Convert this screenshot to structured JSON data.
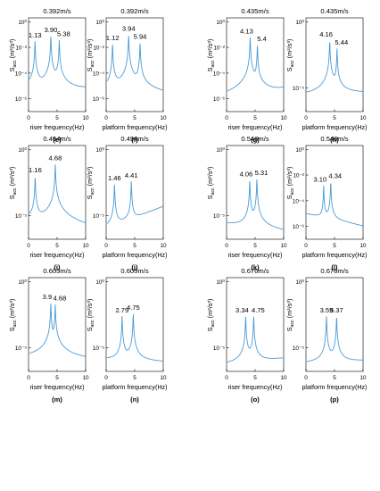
{
  "ylabel_main": "S",
  "ylabel_sub": "acc",
  "ylabel_unit": "(m²/s³)",
  "xlabel_riser": "riser frequency(Hz)",
  "xlabel_platform": "platform frequency(Hz)",
  "line_color": "#4a9bd6",
  "chart_data": [
    {
      "id": "e",
      "type": "line",
      "title": "0.392m/s",
      "xlabel": "riser frequency(Hz)",
      "caption": "(e)",
      "xlim": [
        0,
        10
      ],
      "xticks": [
        "0",
        "5",
        "10"
      ],
      "yscale": "log",
      "ylim_exp": [
        -7,
        0.3
      ],
      "yticks": [
        {
          "exp": 0,
          "label": "10⁰"
        },
        {
          "exp": -2,
          "label": "10⁻²"
        },
        {
          "exp": -4,
          "label": "10⁻⁴"
        },
        {
          "exp": -6,
          "label": "10⁻⁶"
        }
      ],
      "baseline_exp": -6.2,
      "end_exp": -5.3,
      "peaks": [
        {
          "f": 1.13,
          "exp": -1.5,
          "label": "1.13"
        },
        {
          "f": 3.9,
          "exp": -1.1,
          "label": "3.90"
        },
        {
          "f": 5.38,
          "exp": -1.4,
          "label": "5.38"
        }
      ]
    },
    {
      "id": "f",
      "type": "line",
      "title": "0.392m/s",
      "xlabel": "platform frequency(Hz)",
      "caption": "(f)",
      "xlim": [
        0,
        10
      ],
      "xticks": [
        "0",
        "5",
        "10"
      ],
      "yscale": "log",
      "ylim_exp": [
        -7,
        0.3
      ],
      "yticks": [
        {
          "exp": 0,
          "label": "10⁰"
        },
        {
          "exp": -2,
          "label": "10⁻²"
        },
        {
          "exp": -4,
          "label": "10⁻⁴"
        },
        {
          "exp": -6,
          "label": "10⁻⁶"
        }
      ],
      "baseline_exp": -6.3,
      "end_exp": -6.0,
      "peaks": [
        {
          "f": 1.12,
          "exp": -1.7,
          "label": "1.12"
        },
        {
          "f": 3.94,
          "exp": -1.0,
          "label": "3.94"
        },
        {
          "f": 5.94,
          "exp": -1.6,
          "label": "5.94"
        }
      ]
    },
    {
      "id": "g",
      "type": "line",
      "title": "0.435m/s",
      "xlabel": "riser frequency(Hz)",
      "caption": "(g)",
      "xlim": [
        0,
        10
      ],
      "xticks": [
        "0",
        "5",
        "10"
      ],
      "yscale": "log",
      "ylim_exp": [
        -7,
        0.3
      ],
      "yticks": [
        {
          "exp": 0,
          "label": "10⁰"
        },
        {
          "exp": -2,
          "label": "10⁻²"
        },
        {
          "exp": -4,
          "label": "10⁻⁴"
        },
        {
          "exp": -6,
          "label": "10⁻⁶"
        }
      ],
      "baseline_exp": -6.6,
      "end_exp": -5.2,
      "peaks": [
        {
          "f": 4.13,
          "exp": -1.2,
          "label": "4.13"
        },
        {
          "f": 5.4,
          "exp": -1.8,
          "label": "5.4"
        }
      ]
    },
    {
      "id": "h",
      "type": "line",
      "title": "0.435m/s",
      "xlabel": "platform frequency(Hz)",
      "caption": "(h)",
      "xlim": [
        0,
        10
      ],
      "xticks": [
        "0",
        "5",
        "10"
      ],
      "yscale": "log",
      "ylim_exp": [
        -6.8,
        0.3
      ],
      "yticks": [
        {
          "exp": 0,
          "label": "10⁰"
        },
        {
          "exp": -5,
          "label": "10⁻⁵"
        }
      ],
      "baseline_exp": -5.6,
      "end_exp": -5.4,
      "peaks": [
        {
          "f": 4.16,
          "exp": -1.4,
          "label": "4.16"
        },
        {
          "f": 5.44,
          "exp": -2.0,
          "label": "5.44"
        }
      ]
    },
    {
      "id": "i",
      "type": "line",
      "title": "0.494m/s",
      "xlabel": "riser frequency(Hz)",
      "caption": "(i)",
      "xlim": [
        0,
        10
      ],
      "xticks": [
        "0",
        "5",
        "10"
      ],
      "yscale": "log",
      "ylim_exp": [
        -6.8,
        0.3
      ],
      "yticks": [
        {
          "exp": 0,
          "label": "10⁰"
        },
        {
          "exp": -5,
          "label": "10⁻⁵"
        }
      ],
      "baseline_exp": -5.5,
      "end_exp": -6.4,
      "peaks": [
        {
          "f": 1.16,
          "exp": -2.0,
          "label": "1.16"
        },
        {
          "f": 4.68,
          "exp": -1.1,
          "label": "4.68"
        }
      ]
    },
    {
      "id": "j",
      "type": "line",
      "title": "0.494m/s",
      "xlabel": "platform frequency(Hz)",
      "caption": "(j)",
      "xlim": [
        0,
        10
      ],
      "xticks": [
        "0",
        "5",
        "10"
      ],
      "yscale": "log",
      "ylim_exp": [
        -6.8,
        0.3
      ],
      "yticks": [
        {
          "exp": 0,
          "label": "10⁰"
        },
        {
          "exp": -5,
          "label": "10⁻⁵"
        }
      ],
      "baseline_exp": -6.0,
      "end_exp": -4.3,
      "peaks": [
        {
          "f": 1.46,
          "exp": -2.6,
          "label": "1.46"
        },
        {
          "f": 4.41,
          "exp": -2.4,
          "label": "4.41"
        }
      ]
    },
    {
      "id": "k",
      "type": "line",
      "title": "0.546m/s",
      "xlabel": "riser frequency(Hz)",
      "caption": "(k)",
      "xlim": [
        0,
        10
      ],
      "xticks": [
        "0",
        "5",
        "10"
      ],
      "yscale": "log",
      "ylim_exp": [
        -6.8,
        0.3
      ],
      "yticks": [
        {
          "exp": 0,
          "label": "10⁰"
        },
        {
          "exp": -5,
          "label": "10⁻⁵"
        }
      ],
      "baseline_exp": -5.6,
      "end_exp": -6.3,
      "peaks": [
        {
          "f": 4.06,
          "exp": -2.3,
          "label": "4.06"
        },
        {
          "f": 5.31,
          "exp": -2.2,
          "label": "5.31"
        }
      ]
    },
    {
      "id": "l",
      "type": "line",
      "title": "0.546m/s",
      "xlabel": "platform frequency(Hz)",
      "caption": "(l)",
      "xlim": [
        0,
        10
      ],
      "xticks": [
        "0",
        "5",
        "10"
      ],
      "yscale": "log",
      "ylim_exp": [
        -7,
        0.3
      ],
      "yticks": [
        {
          "exp": 0,
          "label": "10⁰"
        },
        {
          "exp": -2,
          "label": "10⁻²"
        },
        {
          "exp": -4,
          "label": "10⁻⁴"
        },
        {
          "exp": -6,
          "label": "10⁻⁶"
        }
      ],
      "baseline_exp": -5.0,
      "end_exp": -6.0,
      "peaks": [
        {
          "f": 3.1,
          "exp": -2.8,
          "label": "3.10"
        },
        {
          "f": 4.34,
          "exp": -2.5,
          "label": "4.34"
        }
      ]
    },
    {
      "id": "m",
      "type": "line",
      "title": "0.605m/s",
      "xlabel": "riser frequency(Hz)",
      "caption": "(m)",
      "xlim": [
        0,
        10
      ],
      "xticks": [
        "0",
        "5",
        "10"
      ],
      "yscale": "log",
      "ylim_exp": [
        -6.8,
        0.3
      ],
      "yticks": [
        {
          "exp": 0,
          "label": "10⁰"
        },
        {
          "exp": -5,
          "label": "10⁻⁵"
        }
      ],
      "baseline_exp": -5.8,
      "end_exp": -6.0,
      "peaks": [
        {
          "f": 3.9,
          "exp": -1.6,
          "label": "3.9"
        },
        {
          "f": 4.68,
          "exp": -1.7,
          "label": "4.68"
        }
      ]
    },
    {
      "id": "n",
      "type": "line",
      "title": "0.605m/s",
      "xlabel": "platform frequency(Hz)",
      "caption": "(n)",
      "xlim": [
        0,
        10
      ],
      "xticks": [
        "0",
        "5",
        "10"
      ],
      "yscale": "log",
      "ylim_exp": [
        -6.8,
        0.3
      ],
      "yticks": [
        {
          "exp": 0,
          "label": "10⁰"
        },
        {
          "exp": -5,
          "label": "10⁻⁵"
        }
      ],
      "baseline_exp": -5.9,
      "end_exp": -6.1,
      "peaks": [
        {
          "f": 2.79,
          "exp": -2.6,
          "label": "2.79"
        },
        {
          "f": 4.75,
          "exp": -2.4,
          "label": "4.75"
        }
      ]
    },
    {
      "id": "o",
      "type": "line",
      "title": "0.676m/s",
      "xlabel": "riser frequency(Hz)",
      "caption": "(o)",
      "xlim": [
        0,
        10
      ],
      "xticks": [
        "0",
        "5",
        "10"
      ],
      "yscale": "log",
      "ylim_exp": [
        -6.8,
        0.3
      ],
      "yticks": [
        {
          "exp": 0,
          "label": "10⁰"
        },
        {
          "exp": -5,
          "label": "10⁻⁵"
        }
      ],
      "baseline_exp": -6.3,
      "end_exp": -5.8,
      "peaks": [
        {
          "f": 3.34,
          "exp": -2.6,
          "label": "3.34"
        },
        {
          "f": 4.75,
          "exp": -2.6,
          "label": "4.75"
        }
      ]
    },
    {
      "id": "p",
      "type": "line",
      "title": "0.676m/s",
      "xlabel": "platform frequency(Hz)",
      "caption": "(p)",
      "xlim": [
        0,
        10
      ],
      "xticks": [
        "0",
        "5",
        "10"
      ],
      "yscale": "log",
      "ylim_exp": [
        -6.8,
        0.3
      ],
      "yticks": [
        {
          "exp": 0,
          "label": "10⁰"
        },
        {
          "exp": -5,
          "label": "10⁻⁵"
        }
      ],
      "baseline_exp": -6.2,
      "end_exp": -6.0,
      "peaks": [
        {
          "f": 3.59,
          "exp": -2.6,
          "label": "3.59"
        },
        {
          "f": 5.37,
          "exp": -2.6,
          "label": "5.37"
        }
      ]
    }
  ]
}
